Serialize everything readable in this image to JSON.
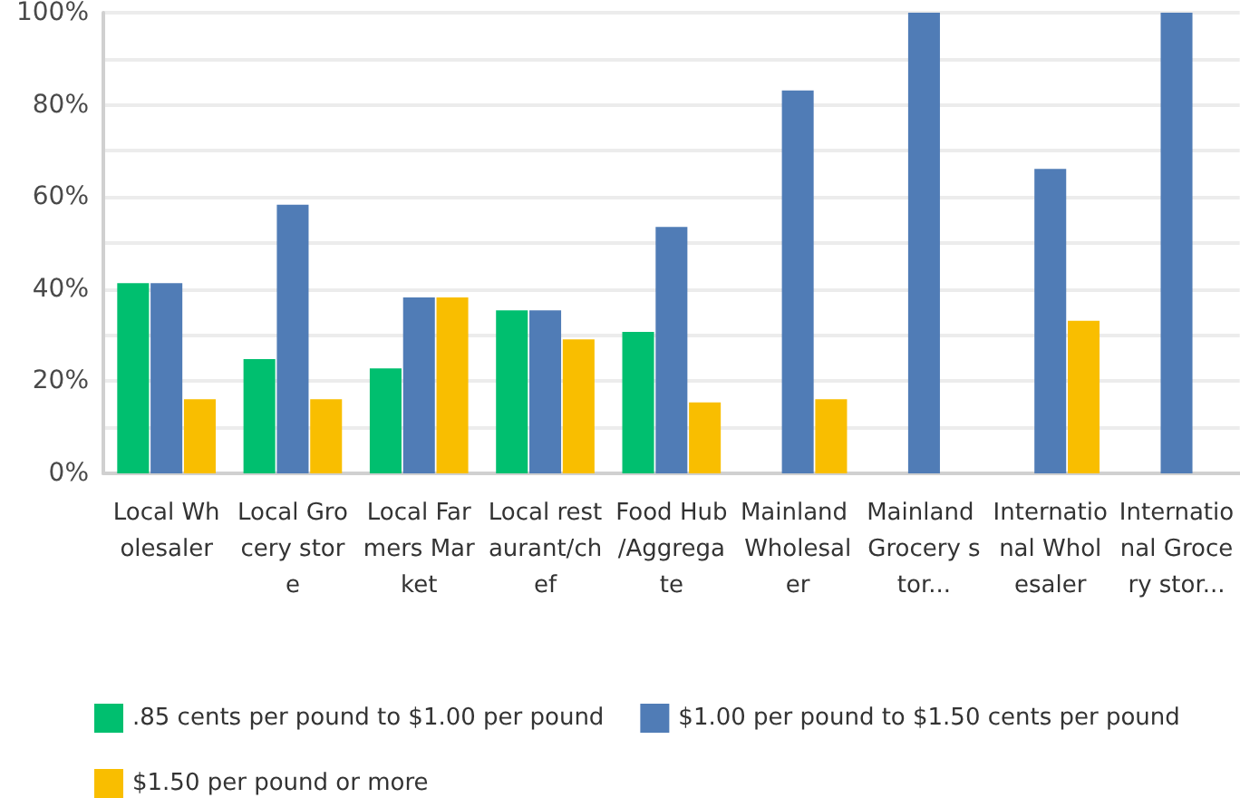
{
  "chart_data": {
    "type": "bar",
    "categories": [
      "Local Wholesaler",
      "Local Grocery store",
      "Local Farmers Market",
      "Local restaurant/chef",
      "Food Hub/Aggregate",
      "Mainland Wholesaler",
      "Mainland Grocery stor...",
      "International Wholesaler",
      "International Grocery stor..."
    ],
    "series": [
      {
        "name": ".85 cents per pound to $1.00 per pound",
        "color": "#00bf6f",
        "values": [
          41.3,
          24.8,
          22.8,
          35.4,
          30.7,
          null,
          null,
          null,
          null
        ]
      },
      {
        "name": "$1.00 per pound to $1.50 cents per pound",
        "color": "#507cb6",
        "values": [
          41.3,
          58.3,
          38.2,
          35.4,
          53.5,
          83.1,
          100,
          66.1,
          100
        ]
      },
      {
        "name": "$1.50 per pound or more",
        "color": "#f9be00",
        "values": [
          16.1,
          16.1,
          38.2,
          29.1,
          15.4,
          16.1,
          null,
          33.1,
          null
        ]
      }
    ],
    "ylim": [
      0,
      100
    ],
    "yticks": [
      {
        "value": 0,
        "label": "0%"
      },
      {
        "value": 10,
        "label": null
      },
      {
        "value": 20,
        "label": "20%"
      },
      {
        "value": 30,
        "label": null
      },
      {
        "value": 40,
        "label": "40%"
      },
      {
        "value": 50,
        "label": null
      },
      {
        "value": 60,
        "label": "60%"
      },
      {
        "value": 70,
        "label": null
      },
      {
        "value": 80,
        "label": "80%"
      },
      {
        "value": 90,
        "label": null
      },
      {
        "value": 100,
        "label": "100%"
      }
    ],
    "grid": "y",
    "legend": "bottom left"
  }
}
